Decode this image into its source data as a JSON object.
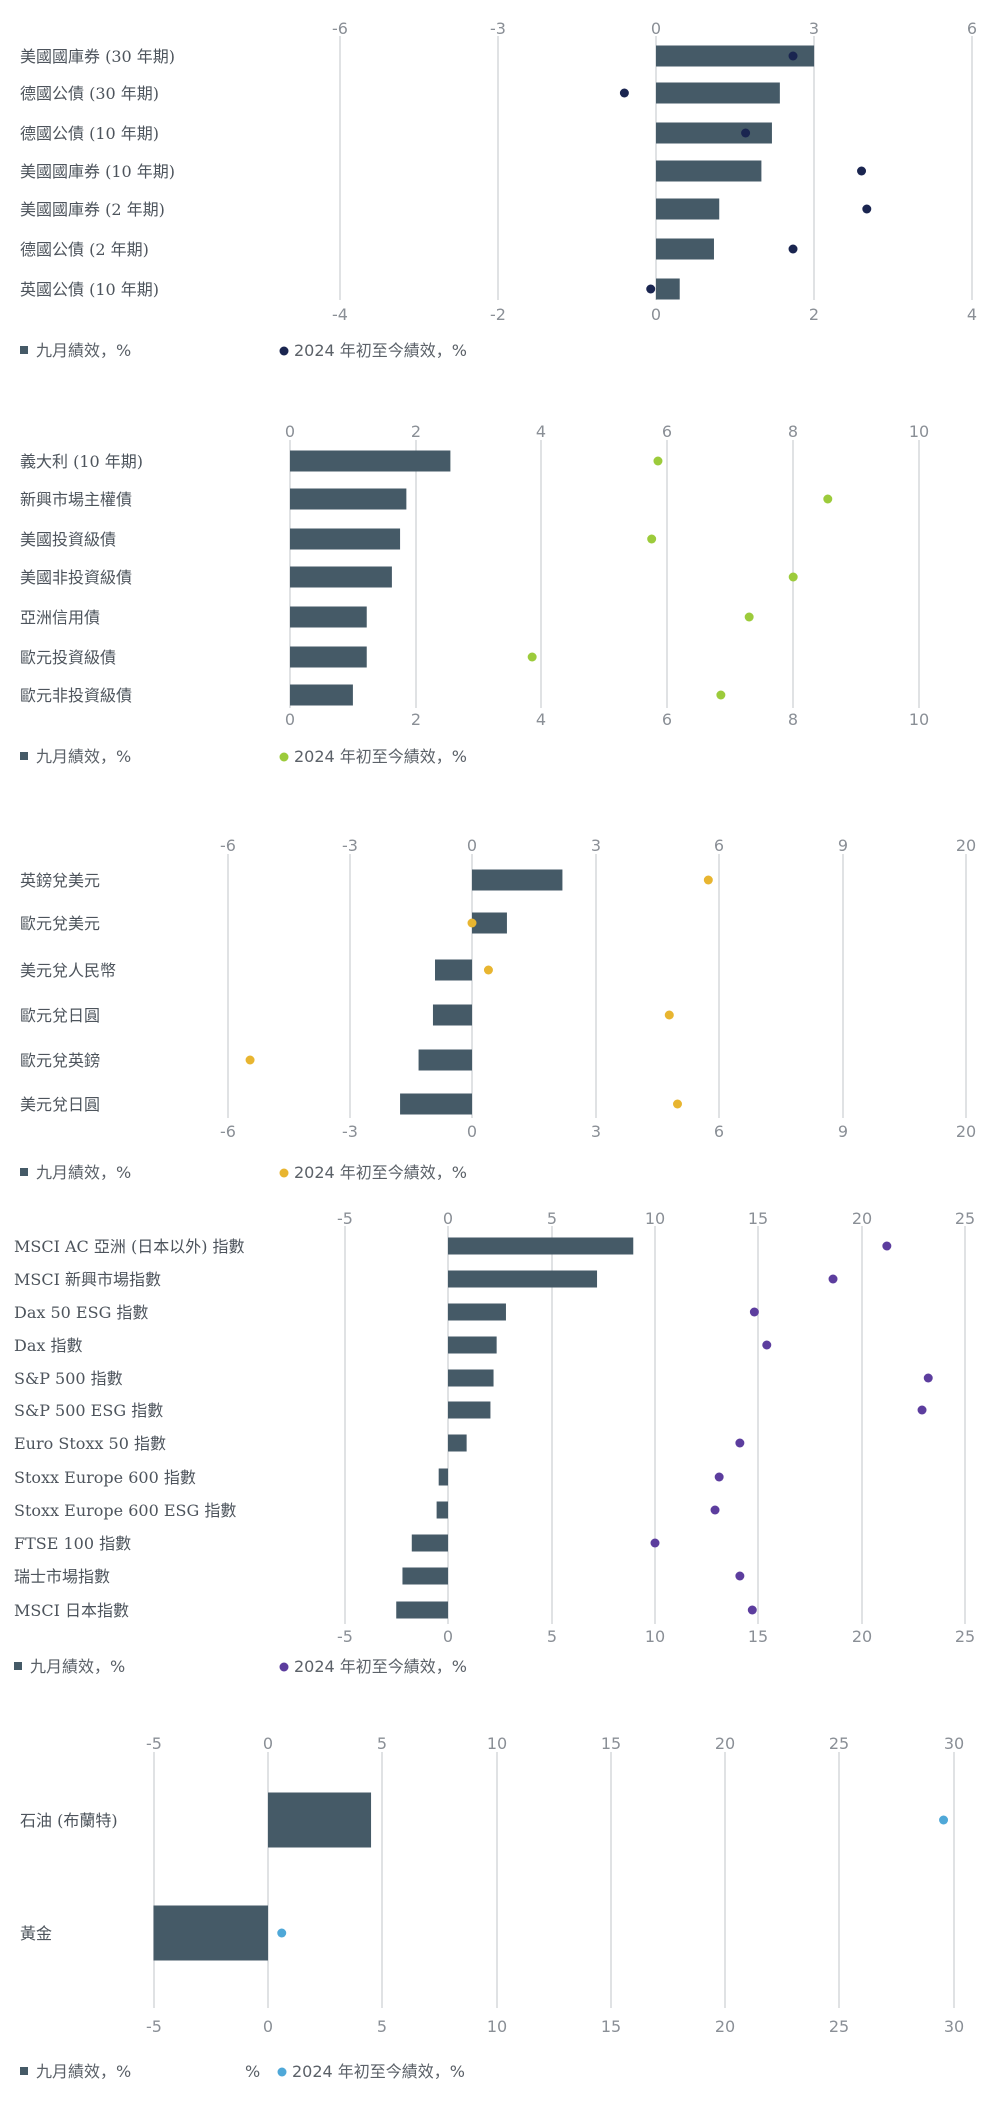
{
  "colors": {
    "bar": "#455a67",
    "grid": "#d6d8db",
    "tick": "#8a8f96",
    "label": "#4d545c"
  },
  "legend": {
    "bar_label": "九月績效，%",
    "dot_label": "2024 年初至今績效，%",
    "extra_mark": "%"
  },
  "chart_data": [
    {
      "type": "bar",
      "dot_color": "#1a2550",
      "ticks_top": [
        "-6",
        "-3",
        "0",
        "3",
        "6"
      ],
      "ticks_bottom": [
        "-4",
        "-2",
        "0",
        "2",
        "4"
      ],
      "xlim": [
        -6,
        6
      ],
      "categories": [
        "美國國庫券 (30 年期)",
        "德國公債 (30 年期)",
        "德國公債 (10 年期)",
        "美國國庫券 (10 年期)",
        "美國國庫券 (2 年期)",
        "德國公債 (2 年期)",
        "英國公債 (10 年期)"
      ],
      "series": [
        {
          "name": "九月績效，%",
          "values": [
            3.0,
            2.35,
            2.2,
            2.0,
            1.2,
            1.1,
            0.45
          ]
        },
        {
          "name": "2024 年初至今績效，%",
          "values": [
            2.6,
            -0.6,
            1.7,
            3.9,
            4.0,
            2.6,
            -0.1
          ]
        }
      ]
    },
    {
      "type": "bar",
      "dot_color": "#9ccb3b",
      "ticks_top": [
        "0",
        "2",
        "4",
        "6",
        "8",
        "10"
      ],
      "ticks_bottom": [
        "0",
        "2",
        "4",
        "6",
        "8",
        "10"
      ],
      "xlim": [
        0,
        10
      ],
      "categories": [
        "義大利 (10 年期)",
        "新興市場主權債",
        "美國投資級債",
        "美國非投資級債",
        "亞洲信用債",
        "歐元投資級債",
        "歐元非投資級債"
      ],
      "series": [
        {
          "name": "九月績效，%",
          "values": [
            2.55,
            1.85,
            1.75,
            1.62,
            1.22,
            1.22,
            1.0
          ]
        },
        {
          "name": "2024 年初至今績效，%",
          "values": [
            5.85,
            8.55,
            5.75,
            8.0,
            7.3,
            3.85,
            6.85
          ]
        }
      ]
    },
    {
      "type": "bar",
      "dot_color": "#e8b530",
      "ticks_top": [
        "-6",
        "-3",
        "0",
        "3",
        "6",
        "9",
        "20"
      ],
      "ticks_bottom": [
        "-6",
        "-3",
        "0",
        "3",
        "6",
        "9",
        "20"
      ],
      "xlim": [
        -6,
        12
      ],
      "categories": [
        "英鎊兌美元",
        "歐元兌美元",
        "美元兌人民幣",
        "歐元兌日圓",
        "歐元兌英鎊",
        "美元兌日圓"
      ],
      "series": [
        {
          "name": "九月績效，%",
          "values": [
            2.2,
            0.85,
            -0.9,
            -0.95,
            -1.3,
            -1.75
          ]
        },
        {
          "name": "2024 年初至今績效，%",
          "values": [
            5.75,
            0.0,
            0.4,
            4.8,
            -5.4,
            5.0
          ]
        }
      ]
    },
    {
      "type": "bar",
      "dot_color": "#5c3d9e",
      "ticks_top": [
        "-5",
        "0",
        "5",
        "10",
        "15",
        "20",
        "25"
      ],
      "ticks_bottom": [
        "-5",
        "0",
        "5",
        "10",
        "15",
        "20",
        "25"
      ],
      "xlim": [
        -5,
        25
      ],
      "categories": [
        "MSCI AC 亞洲 (日本以外) 指數",
        "MSCI 新興市場指數",
        "Dax 50 ESG 指數",
        "Dax 指數",
        "S&P 500 指數",
        "S&P 500 ESG 指數",
        "Euro Stoxx 50 指數",
        "Stoxx Europe 600 指數",
        "Stoxx Europe 600 ESG 指數",
        "FTSE 100 指數",
        "瑞士市場指數",
        "MSCI 日本指數"
      ],
      "series": [
        {
          "name": "九月績效，%",
          "values": [
            8.95,
            7.2,
            2.8,
            2.35,
            2.2,
            2.05,
            0.9,
            -0.45,
            -0.55,
            -1.75,
            -2.2,
            -2.5
          ]
        },
        {
          "name": "2024 年初至今績效，%",
          "values": [
            21.2,
            18.6,
            14.8,
            15.4,
            23.2,
            22.9,
            14.1,
            13.1,
            12.9,
            10.0,
            14.1,
            14.7
          ]
        }
      ]
    },
    {
      "type": "bar",
      "dot_color": "#4fa8d8",
      "ticks_top": [
        "-5",
        "0",
        "5",
        "10",
        "15",
        "20",
        "25",
        "30"
      ],
      "ticks_bottom": [
        "-5",
        "0",
        "5",
        "10",
        "15",
        "20",
        "25",
        "30"
      ],
      "xlim": [
        -5,
        30
      ],
      "categories": [
        "石油 (布蘭特)",
        "黃金"
      ],
      "series": [
        {
          "name": "九月績效，%",
          "values": [
            4.5,
            -5.0
          ]
        },
        {
          "name": "2024 年初至今績效，%",
          "values": [
            29.5,
            0.6
          ]
        }
      ]
    }
  ]
}
